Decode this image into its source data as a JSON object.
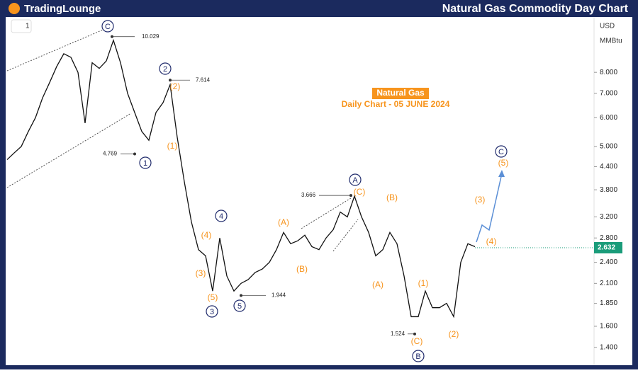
{
  "header": {
    "brand": "TradingLounge",
    "title": "Natural Gas Commodity Day Chart"
  },
  "toolbar": {
    "interval": "1"
  },
  "chart_data": {
    "type": "line",
    "title": "Natural Gas",
    "subtitle": "Daily Chart - 05 JUNE 2024",
    "currency": "USD",
    "unit": "MMBtu",
    "color": "#111111",
    "log_scale": true,
    "ylim": [
      1.25,
      11.36
    ],
    "yticks": [
      {
        "value": 8,
        "label": "8.000"
      },
      {
        "value": 7,
        "label": "7.000"
      },
      {
        "value": 6,
        "label": "6.000"
      },
      {
        "value": 5,
        "label": "5.000"
      },
      {
        "value": 4.4,
        "label": "4.400"
      },
      {
        "value": 3.8,
        "label": "3.800"
      },
      {
        "value": 3.2,
        "label": "3.200"
      },
      {
        "value": 2.8,
        "label": "2.800"
      },
      {
        "value": 2.4,
        "label": "2.400"
      },
      {
        "value": 2.1,
        "label": "2.100"
      },
      {
        "value": 1.85,
        "label": "1.850"
      },
      {
        "value": 1.6,
        "label": "1.600"
      },
      {
        "value": 1.4,
        "label": "1.400"
      }
    ],
    "values": [
      4.6,
      4.8,
      5.0,
      5.5,
      6.0,
      6.8,
      7.5,
      8.3,
      9.0,
      8.8,
      8.0,
      5.8,
      8.5,
      8.2,
      8.6,
      9.8,
      8.5,
      7.0,
      6.2,
      5.5,
      5.2,
      6.2,
      6.6,
      7.4,
      5.3,
      4.0,
      3.1,
      2.6,
      2.5,
      2.0,
      2.8,
      2.2,
      2.0,
      2.1,
      2.15,
      2.25,
      2.3,
      2.4,
      2.6,
      2.9,
      2.7,
      2.75,
      2.85,
      2.65,
      2.6,
      2.8,
      2.95,
      3.3,
      3.2,
      3.65,
      3.2,
      2.9,
      2.5,
      2.6,
      2.9,
      2.7,
      2.2,
      1.7,
      1.7,
      2.0,
      1.8,
      1.8,
      1.85,
      1.7,
      2.4,
      2.7,
      2.65
    ],
    "last_price": {
      "value": 2.632,
      "label": "2.632",
      "color": "#1a9c7a"
    },
    "price_marks": [
      10.029,
      7.614,
      4.769,
      3.666,
      1.944,
      1.524
    ],
    "waves": [
      {
        "label": "C",
        "circled": true
      },
      {
        "label": "2",
        "circled": true
      },
      {
        "label": "1",
        "circled": true
      },
      {
        "label": "4",
        "circled": true
      },
      {
        "label": "3",
        "circled": true
      },
      {
        "label": "5",
        "circled": true
      },
      {
        "label": "A",
        "circled": true
      },
      {
        "label": "B",
        "circled": true
      },
      {
        "label": "C",
        "circled": true
      },
      {
        "label": "(2)"
      },
      {
        "label": "(1)"
      },
      {
        "label": "(4)"
      },
      {
        "label": "(3)"
      },
      {
        "label": "(5)"
      },
      {
        "label": "(A)"
      },
      {
        "label": "(B)"
      },
      {
        "label": "(C)"
      },
      {
        "label": "(B)"
      },
      {
        "label": "(A)"
      },
      {
        "label": "(1)"
      },
      {
        "label": "(C)"
      },
      {
        "label": "(2)"
      },
      {
        "label": "(3)"
      },
      {
        "label": "(4)"
      },
      {
        "label": "(5)"
      }
    ]
  }
}
